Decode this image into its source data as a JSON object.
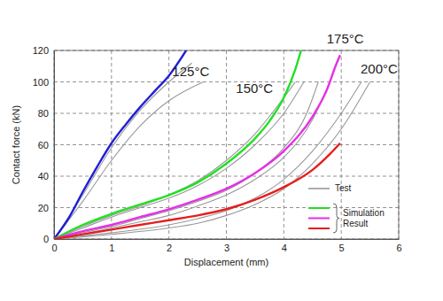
{
  "chart_data": {
    "type": "line",
    "x_label": "Displacement (mm)",
    "y_label": "Contact force (kN)",
    "xlim": [
      0,
      6
    ],
    "xticks": [
      0,
      1,
      2,
      3,
      4,
      5,
      6
    ],
    "ylim": [
      0,
      120
    ],
    "yticks": [
      0,
      20,
      40,
      60,
      80,
      100,
      120
    ],
    "grid": true,
    "legend": "lower right",
    "series": [
      {
        "name": "Test",
        "color": "#999999",
        "x": [
          0,
          0.5,
          1,
          1.5,
          2,
          2.4
        ],
        "values": [
          0,
          28,
          58,
          82,
          100,
          112
        ]
      },
      {
        "name": "Test",
        "color": "#999999",
        "x": [
          0,
          0.5,
          1,
          1.5,
          2,
          2.6
        ],
        "values": [
          0,
          24,
          50,
          72,
          88,
          100
        ]
      },
      {
        "name": "Test",
        "color": "#999999",
        "x": [
          0,
          0.5,
          1,
          1.5,
          2,
          2.5,
          3,
          3.5,
          4,
          4.2
        ],
        "values": [
          0,
          8,
          15,
          21,
          28,
          37,
          50,
          67,
          90,
          100
        ]
      },
      {
        "name": "Test",
        "color": "#999999",
        "x": [
          0,
          0.5,
          1,
          1.5,
          2,
          2.5,
          3,
          3.5,
          4,
          4.35
        ],
        "values": [
          0,
          7,
          14,
          20,
          26,
          34,
          45,
          60,
          80,
          100
        ]
      },
      {
        "name": "Test",
        "color": "#999999",
        "x": [
          0,
          0.5,
          1,
          1.5,
          2,
          2.5,
          3,
          3.5,
          4,
          4.4,
          4.6
        ],
        "values": [
          0,
          4,
          8,
          13,
          18,
          24,
          31,
          42,
          58,
          80,
          100
        ]
      },
      {
        "name": "Test",
        "color": "#999999",
        "x": [
          0,
          0.5,
          1,
          1.5,
          2,
          2.5,
          3,
          3.5,
          4,
          4.5,
          4.8
        ],
        "values": [
          0,
          3,
          7,
          11,
          15,
          21,
          28,
          38,
          52,
          76,
          100
        ]
      },
      {
        "name": "Test",
        "color": "#999999",
        "x": [
          0,
          1,
          2,
          2.5,
          3,
          3.5,
          4,
          4.5,
          5,
          5.35
        ],
        "values": [
          0,
          4,
          9,
          13,
          18,
          26,
          38,
          56,
          80,
          100
        ]
      },
      {
        "name": "Test",
        "color": "#999999",
        "x": [
          0,
          1,
          2,
          2.5,
          3,
          3.5,
          4,
          4.5,
          5,
          5.5
        ],
        "values": [
          0,
          3,
          7,
          10,
          15,
          22,
          32,
          48,
          70,
          100
        ]
      },
      {
        "color": "#1f1fd6",
        "x": [
          0,
          0.25,
          0.5,
          0.75,
          1,
          1.25,
          1.5,
          1.75,
          2,
          2.3
        ],
        "values": [
          0,
          13,
          30,
          46,
          61,
          73,
          84,
          94,
          104,
          120
        ]
      },
      {
        "name": "Simulation Result",
        "color": "#22e022",
        "x": [
          0,
          0.5,
          1,
          1.5,
          2,
          2.5,
          3,
          3.5,
          3.75,
          4,
          4.2,
          4.3
        ],
        "values": [
          0,
          9,
          16,
          22,
          28,
          36,
          48,
          64,
          75,
          90,
          108,
          120
        ]
      },
      {
        "name": "Simulation Result",
        "color": "#e62ee6",
        "x": [
          0,
          0.5,
          1,
          1.5,
          2,
          2.5,
          3,
          3.5,
          4,
          4.5,
          4.75,
          4.9,
          4.98
        ],
        "values": [
          0,
          5,
          9,
          14,
          19,
          25,
          32,
          42,
          56,
          78,
          95,
          110,
          117
        ]
      },
      {
        "name": "Simulation Result",
        "color": "#e61e1e",
        "x": [
          0,
          0.5,
          1,
          1.5,
          2,
          2.5,
          3,
          3.5,
          4,
          4.5,
          4.8,
          4.98
        ],
        "values": [
          0,
          3,
          6,
          9,
          12,
          15,
          19,
          25,
          33,
          44,
          54,
          61
        ]
      }
    ],
    "annotations": [
      {
        "text": "125°C",
        "x": 2.38,
        "y": 106
      },
      {
        "text": "150°C",
        "x": 3.49,
        "y": 95
      },
      {
        "text": "175°C",
        "x": 5.07,
        "y": 127
      },
      {
        "text": "200°C",
        "x": 5.66,
        "y": 107.6
      }
    ]
  }
}
